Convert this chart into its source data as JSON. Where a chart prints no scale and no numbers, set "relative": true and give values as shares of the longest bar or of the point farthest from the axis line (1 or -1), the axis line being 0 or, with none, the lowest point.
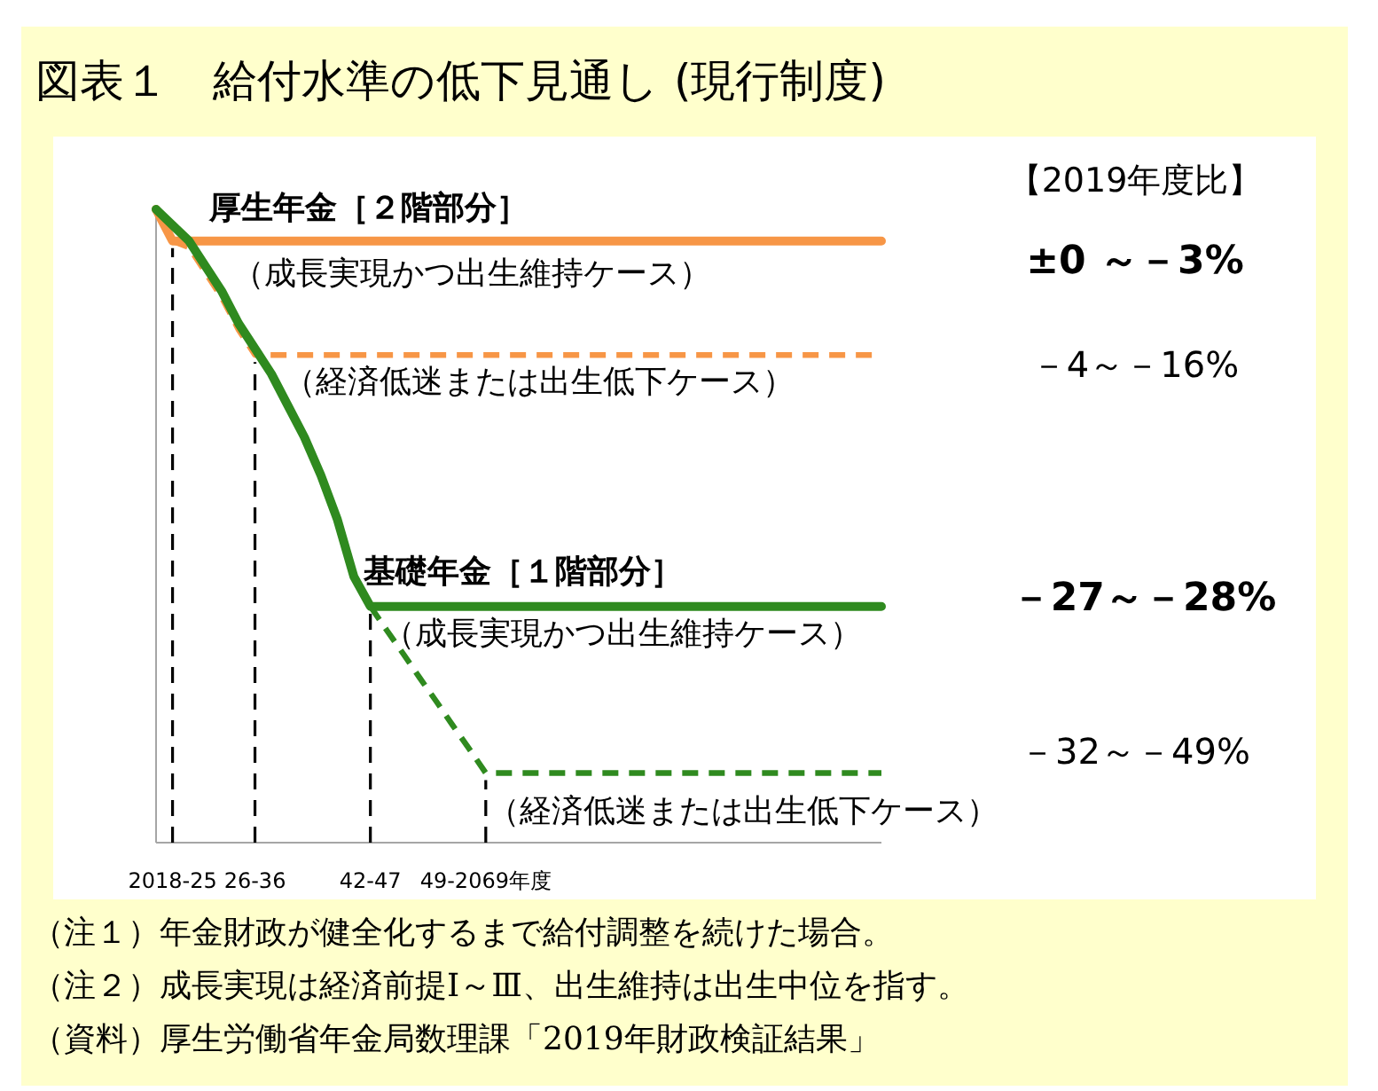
{
  "chart_data": {
    "type": "line",
    "title": "図表１　給付水準の低下見通し (現行制度)",
    "relative": true,
    "categories": [
      null,
      "2018-25",
      null,
      null,
      null,
      null,
      "26-36",
      null,
      null,
      null,
      null,
      null,
      null,
      "42-47",
      null,
      null,
      null,
      null,
      null,
      null,
      "49-2069年度",
      null,
      null,
      null,
      null,
      null,
      null,
      null,
      null,
      null,
      null,
      null,
      null,
      null,
      null,
      null,
      null,
      null,
      null,
      null,
      null,
      null,
      null,
      null,
      null
    ],
    "series": [
      {
        "color": "#f79646",
        "line_style": "solid",
        "values": [
          1,
          0.95,
          0.95,
          0.95,
          0.95,
          0.95,
          0.95,
          0.95,
          0.95,
          0.95,
          0.95,
          0.95,
          0.95,
          0.95,
          0.95,
          0.95,
          0.95,
          0.95,
          0.95,
          0.95,
          0.95,
          0.95,
          0.95,
          0.95,
          0.95,
          0.95,
          0.95,
          0.95,
          0.95,
          0.95,
          0.95,
          0.95,
          0.95,
          0.95,
          0.95,
          0.95,
          0.95,
          0.95,
          0.95,
          0.95,
          0.95,
          0.95,
          0.95,
          0.95,
          0.95
        ]
      },
      {
        "color": "#f79646",
        "line_style": "dashed",
        "values": [
          null,
          0.95,
          0.94,
          0.9,
          0.86,
          0.81,
          0.77,
          0.77,
          0.77,
          0.77,
          0.77,
          0.77,
          0.77,
          0.77,
          0.77,
          0.77,
          0.77,
          0.77,
          0.77,
          0.77,
          0.77,
          0.77,
          0.77,
          0.77,
          0.77,
          0.77,
          0.77,
          0.77,
          0.77,
          0.77,
          0.77,
          0.77,
          0.77,
          0.77,
          0.77,
          0.77,
          0.77,
          0.77,
          0.77,
          0.77,
          0.77,
          0.77,
          0.77,
          0.77,
          0.77
        ]
      },
      {
        "color": "#2f8a1f",
        "line_style": "solid",
        "values": [
          1,
          0.975,
          0.95,
          0.91,
          0.87,
          0.82,
          0.78,
          0.74,
          0.69,
          0.64,
          0.58,
          0.51,
          0.42,
          0.373,
          0.373,
          0.373,
          0.373,
          0.373,
          0.373,
          0.373,
          0.373,
          0.373,
          0.373,
          0.373,
          0.373,
          0.373,
          0.373,
          0.373,
          0.373,
          0.373,
          0.373,
          0.373,
          0.373,
          0.373,
          0.373,
          0.373,
          0.373,
          0.373,
          0.373,
          0.373,
          0.373,
          0.373,
          0.373,
          0.373,
          0.373
        ]
      },
      {
        "color": "#2f8a1f",
        "line_style": "dashed",
        "values": [
          null,
          null,
          null,
          null,
          null,
          null,
          null,
          null,
          null,
          null,
          null,
          null,
          null,
          0.373,
          0.335,
          0.298,
          0.26,
          0.223,
          0.185,
          0.148,
          0.11,
          0.11,
          0.11,
          0.11,
          0.11,
          0.11,
          0.11,
          0.11,
          0.11,
          0.11,
          0.11,
          0.11,
          0.11,
          0.11,
          0.11,
          0.11,
          0.11,
          0.11,
          0.11,
          0.11,
          0.11,
          0.11,
          0.11,
          0.11,
          0.11
        ]
      }
    ],
    "ref_lines": [
      {
        "axis": "x",
        "value": "2018-25",
        "color": "#000000",
        "line_style": "dashed"
      },
      {
        "axis": "x",
        "value": "26-36",
        "color": "#000000",
        "line_style": "dashed"
      },
      {
        "axis": "x",
        "value": "42-47",
        "color": "#000000",
        "line_style": "dashed"
      },
      {
        "axis": "x",
        "value": "49-2069年度",
        "color": "#000000",
        "line_style": "dashed"
      }
    ],
    "annotations": [
      "厚生年金［２階部分］",
      "（成長実現かつ出生維持ケース）",
      "（経済低迷または出生低下ケース）",
      "基礎年金［１階部分］",
      "（成長実現かつ出生維持ケース）",
      "（経済低迷または出生低下ケース）",
      "【2019年度比】",
      "±0 ～－3%",
      "－4～－16%",
      "－27～－28%",
      "－32～－49%",
      "（注１）年金財政が健全化するまで給付調整を続けた場合。",
      "（注２）成長実現は経済前提Ⅰ～Ⅲ、出生維持は出生中位を指す。",
      "（資料）厚生労働省年金局数理課「2019年財政検証結果」"
    ]
  }
}
